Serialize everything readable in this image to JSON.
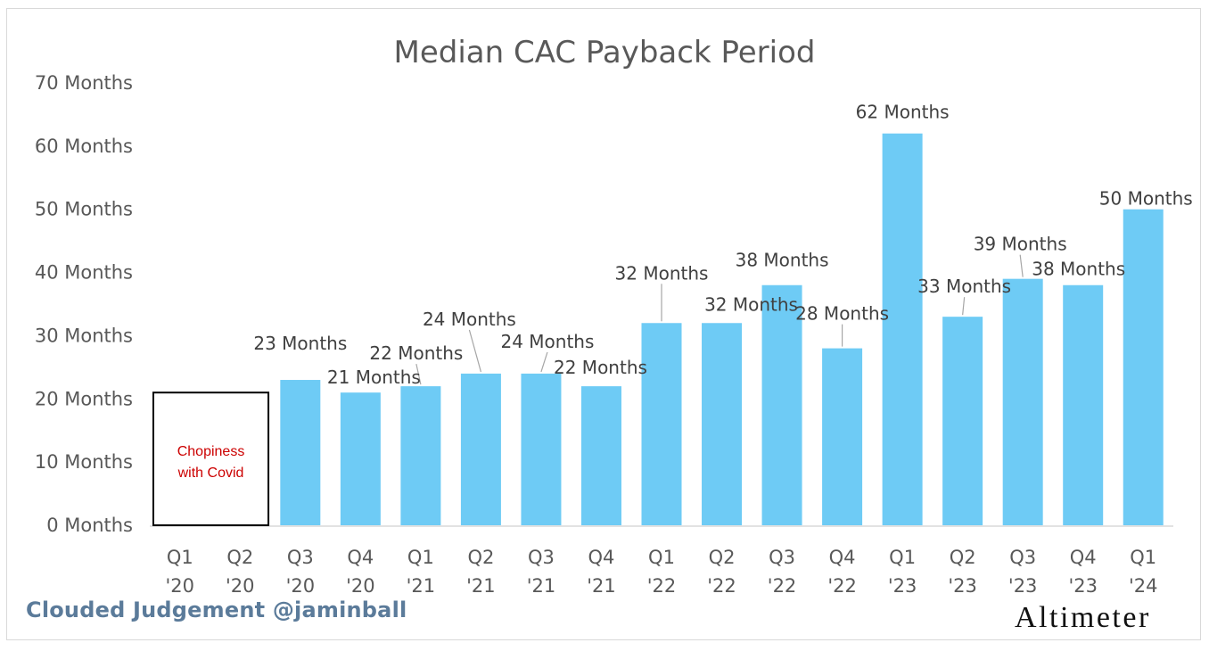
{
  "chart_data": {
    "type": "bar",
    "title": "Median CAC Payback Period",
    "categories": [
      [
        "Q1",
        "'20"
      ],
      [
        "Q2",
        "'20"
      ],
      [
        "Q3",
        "'20"
      ],
      [
        "Q4",
        "'20"
      ],
      [
        "Q1",
        "'21"
      ],
      [
        "Q2",
        "'21"
      ],
      [
        "Q3",
        "'21"
      ],
      [
        "Q4",
        "'21"
      ],
      [
        "Q1",
        "'22"
      ],
      [
        "Q2",
        "'22"
      ],
      [
        "Q3",
        "'22"
      ],
      [
        "Q4",
        "'22"
      ],
      [
        "Q1",
        "'23"
      ],
      [
        "Q2",
        "'23"
      ],
      [
        "Q3",
        "'23"
      ],
      [
        "Q4",
        "'23"
      ],
      [
        "Q1",
        "'24"
      ]
    ],
    "values": [
      null,
      null,
      23,
      21,
      22,
      24,
      24,
      22,
      32,
      32,
      38,
      28,
      62,
      33,
      39,
      38,
      50
    ],
    "data_labels": [
      null,
      null,
      "23 Months",
      "21 Months",
      "22 Months",
      "24 Months",
      "24 Months",
      "22 Months",
      "32 Months",
      "32 Months",
      "38 Months",
      "28 Months",
      "62 Months",
      "33 Months",
      "39 Months",
      "38 Months",
      "50 Months"
    ],
    "ylim": [
      0,
      70
    ],
    "yticks": [
      0,
      10,
      20,
      30,
      40,
      50,
      60,
      70
    ],
    "ytick_labels": [
      "0 Months",
      "10 Months",
      "20 Months",
      "30 Months",
      "40 Months",
      "50 Months",
      "60 Months",
      "70 Months"
    ],
    "bar_color": "#6ecbf5",
    "grid": false,
    "legend": "none",
    "annotation": {
      "text": [
        "Chopiness",
        "with Covid"
      ],
      "covers_categories": [
        0,
        1
      ],
      "value": 21,
      "text_color": "#cc0000"
    }
  },
  "footer": {
    "credit": "Clouded Judgement @jaminball",
    "brand": "Altimeter"
  }
}
